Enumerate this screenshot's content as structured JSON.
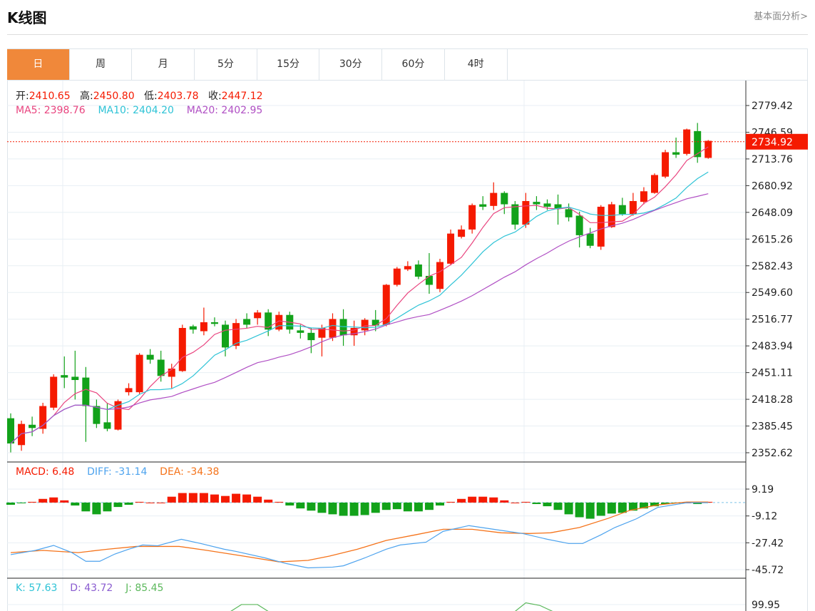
{
  "header": {
    "title": "K线图",
    "link": "基本面分析>"
  },
  "tabs": [
    {
      "label": "日",
      "active": true
    },
    {
      "label": "周"
    },
    {
      "label": "月"
    },
    {
      "label": "5分"
    },
    {
      "label": "15分"
    },
    {
      "label": "30分"
    },
    {
      "label": "60分"
    },
    {
      "label": "4时"
    }
  ],
  "ohlc_legend": {
    "open_label": "开:",
    "open": "2410.65",
    "high_label": "高:",
    "high": "2450.80",
    "low_label": "低:",
    "low": "2403.78",
    "close_label": "收:",
    "close": "2447.12"
  },
  "ma_legend": {
    "ma5": "MA5: 2398.76",
    "ma10": "MA10: 2404.20",
    "ma20": "MA20: 2402.95"
  },
  "macd_legend": {
    "macd": "MACD: 6.48",
    "diff": "DIFF: -31.14",
    "dea": "DEA: -34.38"
  },
  "kdj_legend": {
    "k": "K: 57.63",
    "d": "D: 43.72",
    "j": "J: 85.45"
  },
  "last_price": "2734.92",
  "colors": {
    "up": "#f51a00",
    "down": "#12a21a",
    "ma5": "#e9447f",
    "ma10": "#2ec3d6",
    "ma20": "#b04fc4",
    "diff": "#4da3ee",
    "dea": "#f5731a",
    "j": "#5cb85c",
    "accent": "#f0883a"
  },
  "chart_data": {
    "type": "candlestick",
    "price_ticks": [
      "2779.42",
      "2746.59",
      "2713.76",
      "2680.92",
      "2648.09",
      "2615.26",
      "2582.43",
      "2549.60",
      "2516.77",
      "2483.94",
      "2451.11",
      "2418.28",
      "2385.45",
      "2352.62"
    ],
    "price_range": [
      2352.62,
      2779.42
    ],
    "candles_ohlc": [
      [
        2395,
        2401,
        2353,
        2364
      ],
      [
        2362,
        2392,
        2355,
        2388
      ],
      [
        2387,
        2397,
        2373,
        2383
      ],
      [
        2382,
        2414,
        2376,
        2410
      ],
      [
        2408,
        2449,
        2405,
        2446
      ],
      [
        2448,
        2471,
        2432,
        2445
      ],
      [
        2446,
        2478,
        2418,
        2442
      ],
      [
        2445,
        2458,
        2366,
        2410
      ],
      [
        2410,
        2418,
        2383,
        2388
      ],
      [
        2390,
        2414,
        2379,
        2382
      ],
      [
        2381,
        2418,
        2380,
        2416
      ],
      [
        2427,
        2438,
        2423,
        2432
      ],
      [
        2427,
        2475,
        2425,
        2473
      ],
      [
        2473,
        2480,
        2462,
        2467
      ],
      [
        2467,
        2478,
        2440,
        2447
      ],
      [
        2446,
        2462,
        2432,
        2456
      ],
      [
        2453,
        2510,
        2452,
        2506
      ],
      [
        2508,
        2510,
        2499,
        2504
      ],
      [
        2502,
        2531,
        2497,
        2513
      ],
      [
        2513,
        2519,
        2508,
        2511
      ],
      [
        2510,
        2515,
        2471,
        2482
      ],
      [
        2484,
        2517,
        2480,
        2512
      ],
      [
        2517,
        2524,
        2506,
        2510
      ],
      [
        2518,
        2528,
        2510,
        2525
      ],
      [
        2525,
        2529,
        2496,
        2504
      ],
      [
        2504,
        2526,
        2502,
        2522
      ],
      [
        2522,
        2526,
        2499,
        2504
      ],
      [
        2503,
        2510,
        2493,
        2500
      ],
      [
        2500,
        2506,
        2475,
        2491
      ],
      [
        2494,
        2510,
        2471,
        2506
      ],
      [
        2494,
        2524,
        2490,
        2517
      ],
      [
        2517,
        2529,
        2484,
        2497
      ],
      [
        2497,
        2515,
        2484,
        2506
      ],
      [
        2503,
        2518,
        2497,
        2516
      ],
      [
        2516,
        2528,
        2502,
        2509
      ],
      [
        2510,
        2560,
        2508,
        2559
      ],
      [
        2559,
        2581,
        2557,
        2579
      ],
      [
        2578,
        2588,
        2576,
        2582
      ],
      [
        2584,
        2589,
        2566,
        2569
      ],
      [
        2570,
        2598,
        2548,
        2559
      ],
      [
        2554,
        2591,
        2550,
        2587
      ],
      [
        2585,
        2627,
        2583,
        2622
      ],
      [
        2618,
        2632,
        2616,
        2627
      ],
      [
        2627,
        2659,
        2622,
        2657
      ],
      [
        2658,
        2668,
        2651,
        2655
      ],
      [
        2656,
        2685,
        2651,
        2672
      ],
      [
        2672,
        2674,
        2646,
        2658
      ],
      [
        2658,
        2662,
        2627,
        2633
      ],
      [
        2633,
        2672,
        2629,
        2662
      ],
      [
        2661,
        2668,
        2651,
        2658
      ],
      [
        2659,
        2664,
        2651,
        2655
      ],
      [
        2658,
        2670,
        2633,
        2653
      ],
      [
        2652,
        2659,
        2637,
        2642
      ],
      [
        2644,
        2649,
        2605,
        2620
      ],
      [
        2622,
        2629,
        2604,
        2607
      ],
      [
        2606,
        2657,
        2602,
        2655
      ],
      [
        2630,
        2661,
        2629,
        2658
      ],
      [
        2657,
        2666,
        2644,
        2646
      ],
      [
        2646,
        2672,
        2644,
        2662
      ],
      [
        2661,
        2679,
        2658,
        2674
      ],
      [
        2672,
        2696,
        2671,
        2694
      ],
      [
        2692,
        2725,
        2690,
        2722
      ],
      [
        2722,
        2740,
        2715,
        2719
      ],
      [
        2720,
        2751,
        2718,
        2750
      ],
      [
        2748,
        2758,
        2709,
        2716
      ],
      [
        2715,
        2737,
        2714,
        2736
      ]
    ],
    "macd_ticks": [
      "9.19",
      "-9.12",
      "-27.42",
      "-45.72"
    ],
    "macd_range": [
      -45.72,
      9.19
    ],
    "macd_hist": [
      -1.5,
      -0.5,
      0.5,
      2.5,
      3.5,
      1.5,
      -2,
      -6,
      -8,
      -6,
      -3,
      -1.5,
      0.5,
      0,
      0,
      4,
      6.5,
      6.5,
      6.5,
      5.5,
      4.5,
      6,
      5.5,
      4,
      2,
      0.5,
      -2,
      -4,
      -5.5,
      -7,
      -8,
      -9,
      -9,
      -8.5,
      -7,
      -5,
      -4.5,
      -6,
      -6,
      -5,
      -2,
      0.5,
      2.5,
      4,
      4,
      3.5,
      1.5,
      0,
      0.5,
      -1,
      -2.5,
      -5,
      -8,
      -10,
      -11,
      -9,
      -7.5,
      -7,
      -5.5,
      -4,
      -2.5,
      -1,
      -0.5,
      0,
      -1,
      0.5
    ],
    "diff_points": [
      [
        0,
        -35.5
      ],
      [
        2.3,
        -32.6
      ],
      [
        4,
        -29.2
      ],
      [
        5.7,
        -34.1
      ],
      [
        7,
        -40
      ],
      [
        8.3,
        -40
      ],
      [
        9.7,
        -35.1
      ],
      [
        11,
        -31.8
      ],
      [
        12.3,
        -28.9
      ],
      [
        13.7,
        -29.4
      ],
      [
        15.9,
        -25
      ],
      [
        17.7,
        -27.9
      ],
      [
        19.9,
        -31.8
      ],
      [
        21,
        -33.3
      ],
      [
        23.7,
        -37.7
      ],
      [
        25.7,
        -41.6
      ],
      [
        27.7,
        -44.5
      ],
      [
        30,
        -44
      ],
      [
        31,
        -43.1
      ],
      [
        33,
        -37.7
      ],
      [
        35,
        -31.8
      ],
      [
        36.3,
        -28.9
      ],
      [
        38.7,
        -27
      ],
      [
        40.3,
        -19.6
      ],
      [
        42.7,
        -15.7
      ],
      [
        45,
        -18.2
      ],
      [
        47.7,
        -21.1
      ],
      [
        50,
        -25
      ],
      [
        52,
        -27.9
      ],
      [
        53.3,
        -27.9
      ],
      [
        55,
        -22
      ],
      [
        56.3,
        -17
      ],
      [
        58.3,
        -11.1
      ],
      [
        60.3,
        -3.3
      ],
      [
        63,
        -0.1
      ],
      [
        65,
        -0.1
      ]
    ],
    "dea_points": [
      [
        0,
        -34.1
      ],
      [
        3,
        -32.6
      ],
      [
        6.3,
        -34.1
      ],
      [
        9,
        -31.8
      ],
      [
        11.7,
        -29.9
      ],
      [
        15.7,
        -29.9
      ],
      [
        18.3,
        -32.6
      ],
      [
        21.7,
        -36.5
      ],
      [
        25,
        -40.4
      ],
      [
        27.7,
        -39.4
      ],
      [
        29.7,
        -36.5
      ],
      [
        32.3,
        -31.8
      ],
      [
        35,
        -25.8
      ],
      [
        37.7,
        -22
      ],
      [
        40.3,
        -18.2
      ],
      [
        43,
        -18.2
      ],
      [
        45.7,
        -20.6
      ],
      [
        48.3,
        -21.1
      ],
      [
        50.3,
        -20.6
      ],
      [
        53,
        -17
      ],
      [
        55.7,
        -10.7
      ],
      [
        57.7,
        -5.3
      ],
      [
        60.3,
        -1.6
      ],
      [
        63,
        0.4
      ],
      [
        65,
        0.4
      ]
    ],
    "kdj_ticks": [
      "99.95"
    ],
    "j_points": [
      [
        20.5,
        92
      ],
      [
        21.5,
        100
      ],
      [
        23,
        100
      ],
      [
        24,
        92
      ]
    ],
    "j_points_2": [
      [
        47,
        92
      ],
      [
        48,
        102
      ],
      [
        49.3,
        99
      ],
      [
        50.5,
        92
      ]
    ]
  }
}
